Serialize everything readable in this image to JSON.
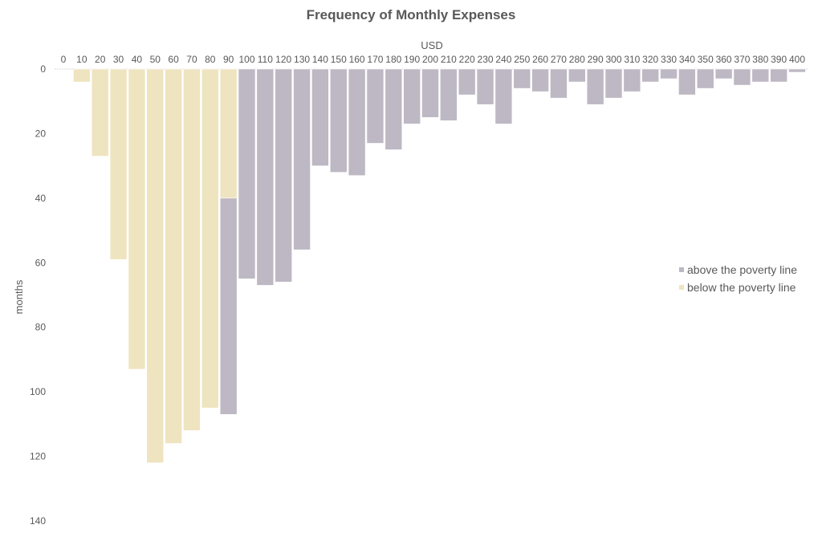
{
  "chart_data": {
    "type": "bar",
    "stacked": true,
    "orientation": "downward",
    "title": "Frequency of Monthly Expenses",
    "xlabel": "USD",
    "ylabel": "months",
    "x_axis_position": "top",
    "ylim": [
      0,
      140
    ],
    "yticks": [
      0,
      20,
      40,
      60,
      80,
      100,
      120,
      140
    ],
    "categories": [
      "0",
      "10",
      "20",
      "30",
      "40",
      "50",
      "60",
      "70",
      "80",
      "90",
      "100",
      "110",
      "120",
      "130",
      "140",
      "150",
      "160",
      "170",
      "180",
      "190",
      "200",
      "210",
      "220",
      "230",
      "240",
      "250",
      "260",
      "270",
      "280",
      "290",
      "300",
      "310",
      "320",
      "330",
      "340",
      "350",
      "360",
      "370",
      "380",
      "390",
      "400"
    ],
    "series": [
      {
        "name": "below the poverty line",
        "color": "#EFE4C0",
        "values": [
          0,
          4,
          27,
          59,
          93,
          122,
          116,
          112,
          105,
          40,
          0,
          0,
          0,
          0,
          0,
          0,
          0,
          0,
          0,
          0,
          0,
          0,
          0,
          0,
          0,
          0,
          0,
          0,
          0,
          0,
          0,
          0,
          0,
          0,
          0,
          0,
          0,
          0,
          0,
          0,
          0
        ]
      },
      {
        "name": "above the poverty line",
        "color": "#BDB8C3",
        "values": [
          0,
          0,
          0,
          0,
          0,
          0,
          0,
          0,
          0,
          67,
          65,
          67,
          66,
          56,
          30,
          32,
          33,
          23,
          25,
          17,
          15,
          16,
          8,
          11,
          17,
          6,
          7,
          9,
          4,
          11,
          9,
          7,
          4,
          3,
          8,
          6,
          3,
          5,
          4,
          4,
          1
        ]
      }
    ],
    "legend": {
      "position": "right",
      "order": [
        "above the poverty line",
        "below the poverty line"
      ]
    },
    "grid": false
  }
}
